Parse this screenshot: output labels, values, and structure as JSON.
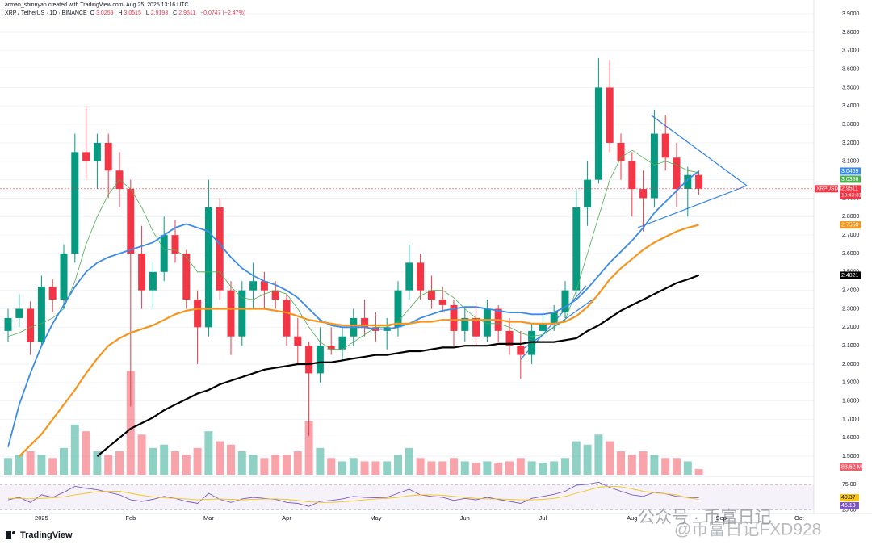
{
  "header": {
    "author": "arman_shirinyan created with TradingView.com, Aug 25, 2025 13:16 UTC",
    "symbol": "XRP / TetherUS · 1D · BINANCE",
    "ohlc_letters": [
      "O",
      "H",
      "L",
      "C"
    ],
    "change": "−0.0747 (−2.47%)"
  },
  "footer": {
    "logo": "TradingView"
  },
  "watermark": {
    "line1": "公众号 · 币富日记",
    "line2": "@币富日记FXD928"
  },
  "chart_data": {
    "type": "candlestick",
    "categories": [
      null,
      null,
      null,
      "2025",
      null,
      null,
      null,
      null,
      null,
      null,
      null,
      "Feb",
      null,
      null,
      null,
      null,
      null,
      null,
      "Mar",
      null,
      null,
      null,
      null,
      null,
      null,
      "Apr",
      null,
      null,
      null,
      null,
      null,
      null,
      null,
      "May",
      null,
      null,
      null,
      null,
      null,
      null,
      null,
      "Jun",
      null,
      null,
      null,
      null,
      null,
      null,
      "Jul",
      null,
      null,
      null,
      null,
      null,
      null,
      null,
      "Aug",
      null,
      null,
      null,
      null,
      null,
      null,
      null,
      "Sep",
      null,
      null,
      null,
      null,
      null,
      null,
      "Oct",
      null
    ],
    "open": [
      2.18,
      2.25,
      2.3,
      2.12,
      2.42,
      2.35,
      2.6,
      3.15,
      3.1,
      3.2,
      3.05,
      2.95,
      2.6,
      2.4,
      2.5,
      2.7,
      2.6,
      2.35,
      2.2,
      2.85,
      2.4,
      2.15,
      2.4,
      2.45,
      2.4,
      2.35,
      2.15,
      2.1,
      1.95,
      2.1,
      2.08,
      2.15,
      2.25,
      2.2,
      2.18,
      2.2,
      2.4,
      2.55,
      2.4,
      2.35,
      2.32,
      2.18,
      2.25,
      2.15,
      2.3,
      2.18,
      2.1,
      2.05,
      2.18,
      2.22,
      2.28,
      2.4,
      2.85,
      3.0,
      3.5,
      3.2,
      3.1,
      2.95,
      2.9,
      3.25,
      3.12,
      2.95,
      3.0259,
      null,
      null,
      null,
      null,
      null,
      null,
      null,
      null,
      null,
      null
    ],
    "high": [
      2.3,
      2.38,
      2.34,
      2.48,
      2.46,
      2.65,
      3.25,
      3.4,
      3.25,
      3.25,
      3.15,
      3.0,
      2.75,
      2.55,
      2.8,
      2.78,
      2.62,
      2.4,
      3.0,
      2.9,
      2.45,
      2.45,
      2.55,
      2.5,
      2.45,
      2.38,
      2.25,
      2.12,
      2.2,
      2.2,
      2.2,
      2.3,
      2.35,
      2.28,
      2.25,
      2.45,
      2.65,
      2.6,
      2.48,
      2.42,
      2.35,
      2.3,
      2.33,
      2.35,
      2.32,
      2.25,
      2.18,
      2.22,
      2.28,
      2.32,
      2.45,
      2.95,
      3.1,
      3.66,
      3.65,
      3.25,
      3.15,
      3.05,
      3.38,
      3.35,
      3.2,
      3.07,
      3.0515,
      null,
      null,
      null,
      null,
      null,
      null,
      null,
      null,
      null,
      null
    ],
    "low": [
      2.12,
      2.2,
      2.05,
      2.1,
      2.28,
      2.3,
      2.55,
      3.0,
      2.95,
      2.9,
      2.85,
      1.77,
      2.3,
      2.3,
      2.45,
      2.55,
      2.3,
      2.0,
      2.15,
      2.35,
      2.05,
      2.1,
      2.3,
      2.3,
      2.3,
      2.1,
      2.0,
      1.61,
      1.9,
      2.05,
      2.02,
      2.1,
      2.15,
      2.12,
      2.08,
      2.15,
      2.35,
      2.35,
      2.3,
      2.28,
      2.1,
      2.12,
      2.1,
      2.12,
      2.12,
      2.05,
      1.92,
      2.0,
      2.15,
      2.18,
      2.25,
      2.38,
      2.75,
      2.98,
      3.15,
      3.0,
      2.8,
      2.72,
      2.85,
      3.05,
      2.85,
      2.8,
      2.9193,
      null,
      null,
      null,
      null,
      null,
      null,
      null,
      null,
      null,
      null
    ],
    "close": [
      2.25,
      2.3,
      2.12,
      2.42,
      2.35,
      2.6,
      3.15,
      3.1,
      3.2,
      3.05,
      2.95,
      2.6,
      2.4,
      2.5,
      2.7,
      2.6,
      2.35,
      2.2,
      2.85,
      2.4,
      2.15,
      2.4,
      2.45,
      2.4,
      2.35,
      2.15,
      2.1,
      1.95,
      2.1,
      2.08,
      2.15,
      2.25,
      2.2,
      2.18,
      2.2,
      2.4,
      2.55,
      2.4,
      2.35,
      2.32,
      2.18,
      2.25,
      2.15,
      2.3,
      2.18,
      2.1,
      2.05,
      2.18,
      2.22,
      2.28,
      2.4,
      2.85,
      3.0,
      3.5,
      3.2,
      3.1,
      2.95,
      2.9,
      3.25,
      3.12,
      2.95,
      3.0259,
      2.9511,
      null,
      null,
      null,
      null,
      null,
      null,
      null,
      null,
      null,
      null
    ],
    "up_color": "#089981",
    "down_color": "#f23645",
    "ylim": [
      1.4,
      3.94
    ],
    "yticks": [
      {
        "value": 1.5,
        "label": "1.5000"
      },
      {
        "value": 1.6,
        "label": "1.6000"
      },
      {
        "value": 1.7,
        "label": "1.7000"
      },
      {
        "value": 1.8,
        "label": "1.8000"
      },
      {
        "value": 1.9,
        "label": "1.9000"
      },
      {
        "value": 2.0,
        "label": "2.0000"
      },
      {
        "value": 2.1,
        "label": "2.1000"
      },
      {
        "value": 2.2,
        "label": "2.2000"
      },
      {
        "value": 2.3,
        "label": "2.3000"
      },
      {
        "value": 2.4,
        "label": "2.4000"
      },
      {
        "value": 2.5,
        "label": "2.5000"
      },
      {
        "value": 2.6,
        "label": "2.6000"
      },
      {
        "value": 2.7,
        "label": "2.7000"
      },
      {
        "value": 2.8,
        "label": "2.8000"
      },
      {
        "value": 2.9,
        "label": "2.9000"
      },
      {
        "value": 3.0,
        "label": "3.0000"
      },
      {
        "value": 3.1,
        "label": "3.1000"
      },
      {
        "value": 3.2,
        "label": "3.2000"
      },
      {
        "value": 3.3,
        "label": "3.3000"
      },
      {
        "value": 3.4,
        "label": "3.4000"
      },
      {
        "value": 3.5,
        "label": "3.5000"
      },
      {
        "value": 3.6,
        "label": "3.6000"
      },
      {
        "value": 3.7,
        "label": "3.7000"
      },
      {
        "value": 3.8,
        "label": "3.8000"
      },
      {
        "value": 3.9,
        "label": "3.9000"
      }
    ],
    "grid": true,
    "price_tag": {
      "symbol": "XRPUSDT",
      "countdown": "10:43:31"
    },
    "series": [
      {
        "color": "#4caf50",
        "width": 0.8,
        "values": [
          2.15,
          2.17,
          2.2,
          2.22,
          2.25,
          2.3,
          2.45,
          2.65,
          2.8,
          2.92,
          3.0,
          2.95,
          2.85,
          2.72,
          2.62,
          2.62,
          2.58,
          2.5,
          2.5,
          2.5,
          2.42,
          2.36,
          2.35,
          2.38,
          2.4,
          2.38,
          2.3,
          2.2,
          2.12,
          2.08,
          2.08,
          2.12,
          2.16,
          2.2,
          2.2,
          2.23,
          2.3,
          2.37,
          2.4,
          2.4,
          2.36,
          2.3,
          2.25,
          2.22,
          2.22,
          2.2,
          2.17,
          2.15,
          2.16,
          2.2,
          2.24,
          2.4,
          2.6,
          2.8,
          3.0,
          3.12,
          3.16,
          3.12,
          3.08,
          3.1,
          3.08,
          3.05,
          3.0386,
          null,
          null,
          null,
          null,
          null,
          null,
          null,
          null,
          null,
          null
        ]
      },
      {
        "color": "#3d8be8",
        "width": 1.8,
        "values": [
          1.55,
          1.78,
          1.95,
          2.1,
          2.22,
          2.32,
          2.42,
          2.5,
          2.55,
          2.58,
          2.6,
          2.62,
          2.64,
          2.66,
          2.7,
          2.74,
          2.76,
          2.74,
          2.72,
          2.65,
          2.58,
          2.52,
          2.48,
          2.45,
          2.43,
          2.4,
          2.36,
          2.3,
          2.24,
          2.21,
          2.2,
          2.2,
          2.2,
          2.19,
          2.19,
          2.2,
          2.22,
          2.25,
          2.27,
          2.29,
          2.3,
          2.31,
          2.31,
          2.3,
          2.29,
          2.28,
          2.28,
          2.27,
          2.27,
          2.28,
          2.31,
          2.35,
          2.41,
          2.48,
          2.55,
          2.61,
          2.67,
          2.74,
          2.82,
          2.88,
          2.94,
          3.0,
          3.0469,
          null,
          null,
          null,
          null,
          null,
          null,
          null,
          null,
          null,
          null
        ]
      },
      {
        "color": "#f7941d",
        "width": 2.2,
        "last_value_label": "2.7550",
        "values": [
          null,
          1.5,
          1.56,
          1.62,
          1.7,
          1.78,
          1.86,
          1.95,
          2.03,
          2.1,
          2.14,
          2.17,
          2.19,
          2.21,
          2.24,
          2.27,
          2.29,
          2.3,
          2.3,
          2.3,
          2.3,
          2.3,
          2.3,
          2.3,
          2.29,
          2.28,
          2.26,
          2.24,
          2.23,
          2.22,
          2.21,
          2.21,
          2.21,
          2.21,
          2.21,
          2.22,
          2.22,
          2.23,
          2.23,
          2.24,
          2.24,
          2.24,
          2.24,
          2.24,
          2.24,
          2.23,
          2.23,
          2.22,
          2.22,
          2.22,
          2.23,
          2.26,
          2.31,
          2.38,
          2.46,
          2.52,
          2.57,
          2.62,
          2.66,
          2.69,
          2.72,
          2.74,
          2.755,
          null,
          null,
          null,
          null,
          null,
          null,
          null,
          null,
          null,
          null
        ]
      },
      {
        "color": "#000000",
        "width": 2.2,
        "values": [
          null,
          null,
          null,
          null,
          null,
          null,
          null,
          null,
          1.5,
          1.55,
          1.6,
          1.65,
          1.68,
          1.71,
          1.75,
          1.78,
          1.81,
          1.84,
          1.86,
          1.89,
          1.91,
          1.93,
          1.95,
          1.97,
          1.98,
          1.99,
          2.0,
          2.0,
          2.01,
          2.01,
          2.02,
          2.03,
          2.04,
          2.05,
          2.05,
          2.06,
          2.07,
          2.07,
          2.08,
          2.09,
          2.09,
          2.1,
          2.1,
          2.1,
          2.11,
          2.11,
          2.11,
          2.12,
          2.12,
          2.12,
          2.13,
          2.14,
          2.18,
          2.21,
          2.25,
          2.29,
          2.32,
          2.35,
          2.38,
          2.41,
          2.44,
          2.46,
          2.4821,
          null,
          null,
          null,
          null,
          null,
          null,
          null,
          null,
          null,
          null
        ]
      }
    ],
    "volume": {
      "lim": [
        0,
        7000
      ],
      "last_value_label": "83.62 M",
      "values": [
        250,
        300,
        350,
        300,
        250,
        400,
        750,
        650,
        350,
        300,
        350,
        1550,
        600,
        400,
        450,
        350,
        300,
        400,
        650,
        500,
        450,
        350,
        300,
        250,
        300,
        300,
        350,
        800,
        400,
        250,
        200,
        250,
        200,
        200,
        200,
        300,
        400,
        250,
        200,
        200,
        250,
        200,
        180,
        200,
        180,
        200,
        250,
        200,
        180,
        200,
        250,
        500,
        450,
        600,
        500,
        350,
        300,
        350,
        300,
        250,
        250,
        200,
        83.62,
        null,
        null,
        null,
        null,
        null,
        null,
        null,
        null,
        null,
        null
      ]
    },
    "rsi": {
      "ylim": [
        18,
        82
      ],
      "yticks": [
        {
          "value": 75,
          "label": "75.00"
        },
        {
          "value": 25,
          "label": "25.00"
        }
      ],
      "color": "#7e57c2",
      "ma_color": "#f5c518",
      "values": [
        45,
        50,
        40,
        55,
        50,
        60,
        72,
        68,
        65,
        60,
        55,
        45,
        42,
        46,
        52,
        48,
        42,
        38,
        58,
        46,
        40,
        47,
        50,
        48,
        46,
        40,
        38,
        32,
        42,
        44,
        47,
        52,
        50,
        49,
        50,
        58,
        66,
        55,
        52,
        50,
        44,
        48,
        45,
        50,
        46,
        42,
        38,
        48,
        52,
        56,
        62,
        74,
        76,
        80,
        70,
        62,
        55,
        52,
        60,
        57,
        52,
        50,
        49.37,
        null,
        null,
        null,
        null,
        null,
        null,
        null,
        null,
        null,
        null
      ],
      "ma": [
        48,
        48,
        47,
        48,
        49,
        51,
        55,
        58,
        61,
        62,
        62,
        58,
        54,
        51,
        49,
        48,
        47,
        45,
        46,
        47,
        46,
        45,
        46,
        47,
        47,
        46,
        44,
        41,
        40,
        40,
        41,
        43,
        45,
        47,
        48,
        50,
        53,
        55,
        55,
        54,
        52,
        50,
        48,
        47,
        47,
        46,
        45,
        45,
        46,
        48,
        52,
        58,
        64,
        70,
        72,
        71,
        67,
        62,
        59,
        57,
        55,
        49,
        46.13,
        null,
        null,
        null,
        null,
        null,
        null,
        null,
        null,
        null,
        null
      ]
    }
  }
}
